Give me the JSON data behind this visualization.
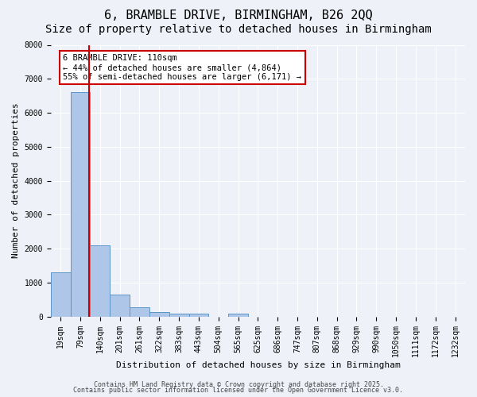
{
  "title": "6, BRAMBLE DRIVE, BIRMINGHAM, B26 2QQ",
  "subtitle": "Size of property relative to detached houses in Birmingham",
  "xlabel": "Distribution of detached houses by size in Birmingham",
  "ylabel": "Number of detached properties",
  "bin_labels": [
    "19sqm",
    "79sqm",
    "140sqm",
    "201sqm",
    "261sqm",
    "322sqm",
    "383sqm",
    "443sqm",
    "504sqm",
    "565sqm",
    "625sqm",
    "686sqm",
    "747sqm",
    "807sqm",
    "868sqm",
    "929sqm",
    "990sqm",
    "1050sqm",
    "1111sqm",
    "1172sqm",
    "1232sqm"
  ],
  "bar_values": [
    1300,
    6620,
    2100,
    650,
    280,
    120,
    90,
    90,
    0,
    90,
    0,
    0,
    0,
    0,
    0,
    0,
    0,
    0,
    0,
    0,
    0
  ],
  "bar_color": "#aec6e8",
  "bar_edge_color": "#5a96c8",
  "background_color": "#eef2f8",
  "grid_color": "#ffffff",
  "vline_x": 1.44,
  "vline_color": "#cc0000",
  "annotation_text": "6 BRAMBLE DRIVE: 110sqm\n← 44% of detached houses are smaller (4,864)\n55% of semi-detached houses are larger (6,171) →",
  "annotation_box_color": "#cc0000",
  "ylim": [
    0,
    8000
  ],
  "yticks": [
    0,
    1000,
    2000,
    3000,
    4000,
    5000,
    6000,
    7000,
    8000
  ],
  "footer_line1": "Contains HM Land Registry data © Crown copyright and database right 2025.",
  "footer_line2": "Contains public sector information licensed under the Open Government Licence v3.0.",
  "title_fontsize": 11,
  "subtitle_fontsize": 10,
  "axis_label_fontsize": 8,
  "tick_fontsize": 7,
  "annotation_fontsize": 7.5,
  "footer_fontsize": 6
}
